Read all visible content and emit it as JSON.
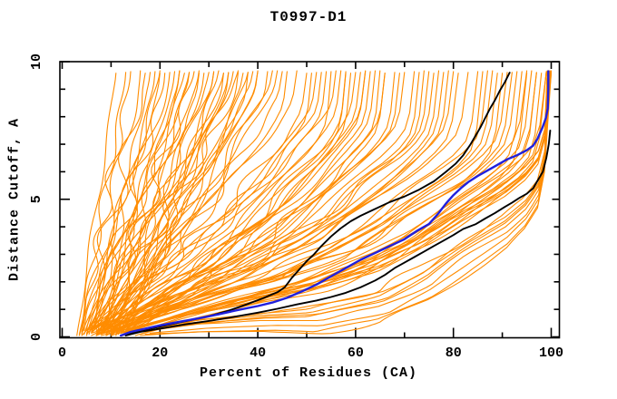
{
  "window": {
    "background": "#ffffff"
  },
  "chart_data": {
    "type": "line",
    "title": "T0997-D1",
    "xlabel": "Percent of Residues (CA)",
    "ylabel": "Distance Cutoff, A",
    "xlim": [
      0,
      100
    ],
    "ylim": [
      0,
      10
    ],
    "x_major_ticks": [
      0,
      20,
      40,
      60,
      80,
      100
    ],
    "x_minor_ticks": [
      10,
      30,
      50,
      70,
      90
    ],
    "y_major_ticks": [
      0,
      5,
      10
    ],
    "y_minor_ticks": [
      1,
      2,
      3,
      4,
      6,
      7,
      8,
      9
    ],
    "grid": false,
    "legend": "none",
    "frame": "box-with-inward-mirrored-ticks",
    "colors": {
      "ensemble": "#ff8c00",
      "highlight": "#2020dd",
      "reference": "#000000",
      "axis": "#000000",
      "background": "#ffffff"
    },
    "curve_y_start": 0.05,
    "curve_y_end": 9.65,
    "shape_template": [
      [
        0,
        0
      ],
      [
        0.14,
        0.04
      ],
      [
        0.31,
        0.08
      ],
      [
        0.43,
        0.1
      ],
      [
        0.59,
        0.17
      ],
      [
        0.7,
        0.26
      ],
      [
        0.8,
        0.37
      ],
      [
        0.89,
        0.46
      ],
      [
        0.94,
        0.53
      ],
      [
        0.98,
        0.62
      ],
      [
        1.0,
        1.0
      ]
    ],
    "series": [
      {
        "name": "server-models-ensemble",
        "color": "#ff8c00",
        "style": "param",
        "width": 1.1,
        "curves": [
          [
            3,
            11,
            0.03
          ],
          [
            3.5,
            13,
            0.05
          ],
          [
            4,
            14,
            0.02
          ],
          [
            4,
            16,
            0.08
          ],
          [
            4.5,
            17,
            0.04
          ],
          [
            5,
            18,
            0.06
          ],
          [
            5,
            19,
            0.1
          ],
          [
            5.5,
            20,
            0.03
          ],
          [
            6,
            21,
            0.07
          ],
          [
            6,
            22,
            0.05
          ],
          [
            6.5,
            23,
            0.09
          ],
          [
            7,
            24,
            0.12
          ],
          [
            7,
            25,
            0.04
          ],
          [
            7.5,
            26,
            0.08
          ],
          [
            8,
            27,
            0.02
          ],
          [
            8,
            28,
            0.06
          ],
          [
            8.5,
            29,
            0.1
          ],
          [
            9,
            30,
            0.05
          ],
          [
            9,
            31,
            0.13
          ],
          [
            9.5,
            32,
            0.07
          ],
          [
            10,
            33,
            0.04
          ],
          [
            10,
            34,
            0.09
          ],
          [
            10.5,
            35,
            0.06
          ],
          [
            11,
            36,
            0.02
          ],
          [
            11,
            37,
            0.11
          ],
          [
            11.5,
            38,
            0.05
          ],
          [
            12,
            39,
            0.08
          ],
          [
            12,
            40,
            0.14
          ],
          [
            5,
            33,
            0.15
          ],
          [
            6,
            36,
            0.17
          ],
          [
            7,
            40,
            0.15
          ],
          [
            4,
            24,
            0.12
          ],
          [
            5,
            28,
            0.16
          ],
          [
            6,
            31,
            0.1
          ],
          [
            8,
            42,
            0.18
          ],
          [
            9,
            44,
            0.14
          ],
          [
            3.5,
            20,
            0.09
          ],
          [
            4.5,
            26,
            0.06
          ],
          [
            10,
            45,
            0.19
          ],
          [
            11,
            43,
            0.12
          ],
          [
            7.5,
            34,
            0.16
          ],
          [
            8.5,
            38,
            0.2
          ],
          [
            4,
            46,
            0.3
          ],
          [
            5,
            48,
            0.26
          ],
          [
            6,
            50,
            0.34
          ],
          [
            7,
            52,
            0.3
          ],
          [
            8,
            54,
            0.38
          ],
          [
            9,
            56,
            0.3
          ],
          [
            10,
            58,
            0.42
          ],
          [
            11,
            60,
            0.34
          ],
          [
            12,
            62,
            0.38
          ],
          [
            13,
            64,
            0.46
          ],
          [
            5,
            51,
            0.42
          ],
          [
            6,
            53,
            0.34
          ],
          [
            7,
            55,
            0.46
          ],
          [
            8,
            57,
            0.38
          ],
          [
            9,
            59,
            0.5
          ],
          [
            10,
            61,
            0.42
          ],
          [
            11,
            63,
            0.46
          ],
          [
            12,
            65,
            0.52
          ],
          [
            13,
            66,
            0.42
          ],
          [
            14,
            68,
            0.48
          ],
          [
            5,
            58,
            0.52
          ],
          [
            6,
            62,
            0.46
          ],
          [
            7,
            66,
            0.54
          ],
          [
            8,
            70,
            0.48
          ],
          [
            9,
            72,
            0.5
          ],
          [
            10,
            74,
            0.55
          ],
          [
            11,
            76,
            0.5
          ],
          [
            12,
            78,
            0.55
          ],
          [
            13,
            80,
            0.52
          ],
          [
            14,
            79,
            0.57
          ],
          [
            6,
            69,
            0.5
          ],
          [
            7,
            73,
            0.55
          ],
          [
            8,
            75,
            0.52
          ],
          [
            9,
            77,
            0.57
          ],
          [
            5,
            81,
            0.6
          ],
          [
            6,
            83,
            0.57
          ],
          [
            7,
            85,
            0.62
          ],
          [
            8,
            87,
            0.6
          ],
          [
            9,
            89,
            0.65
          ],
          [
            10,
            91,
            0.62
          ],
          [
            11,
            93,
            0.67
          ],
          [
            12,
            95,
            0.64
          ],
          [
            13,
            97,
            0.7
          ],
          [
            14,
            99,
            0.66
          ],
          [
            6,
            86,
            0.72
          ],
          [
            7,
            88,
            0.66
          ],
          [
            8,
            90,
            0.74
          ],
          [
            9,
            92,
            0.68
          ],
          [
            10,
            94,
            0.76
          ],
          [
            11,
            96,
            0.7
          ],
          [
            12,
            98,
            0.78
          ],
          [
            13,
            100,
            0.72
          ],
          [
            14,
            100,
            0.8
          ],
          [
            15,
            100,
            0.75
          ],
          [
            8,
            95,
            0.82
          ],
          [
            9,
            97,
            0.78
          ],
          [
            10,
            99,
            0.84
          ],
          [
            11,
            100,
            0.8
          ],
          [
            12,
            100,
            0.86
          ],
          [
            13,
            100,
            0.83
          ],
          [
            15,
            99,
            0.76
          ],
          [
            16,
            100,
            0.82
          ],
          [
            12,
            100,
            1.02
          ],
          [
            13,
            100,
            1.08
          ],
          [
            14,
            100,
            1.14
          ],
          [
            15,
            100,
            1.2
          ],
          [
            16,
            100,
            1.26
          ],
          [
            17,
            100,
            1.3
          ],
          [
            18,
            100,
            1.22
          ],
          [
            16,
            100,
            1.1
          ],
          [
            14,
            100,
            1.05
          ]
        ]
      },
      {
        "name": "reference-model-upper-black",
        "color": "#000000",
        "style": "points",
        "width": 1.9,
        "points": [
          [
            12,
            0.05
          ],
          [
            15,
            0.2
          ],
          [
            18,
            0.3
          ],
          [
            22,
            0.45
          ],
          [
            26,
            0.6
          ],
          [
            30,
            0.75
          ],
          [
            34,
            0.95
          ],
          [
            38,
            1.2
          ],
          [
            41,
            1.4
          ],
          [
            44,
            1.62
          ],
          [
            45.5,
            1.8
          ],
          [
            47,
            2.15
          ],
          [
            48.5,
            2.45
          ],
          [
            50,
            2.75
          ],
          [
            51.5,
            3.0
          ],
          [
            53,
            3.3
          ],
          [
            55,
            3.65
          ],
          [
            57,
            3.95
          ],
          [
            59,
            4.2
          ],
          [
            61,
            4.4
          ],
          [
            64,
            4.65
          ],
          [
            67,
            4.9
          ],
          [
            70,
            5.1
          ],
          [
            73,
            5.35
          ],
          [
            76,
            5.65
          ],
          [
            78.5,
            6.0
          ],
          [
            80.5,
            6.3
          ],
          [
            82,
            6.6
          ],
          [
            83.5,
            7.0
          ],
          [
            84.5,
            7.3
          ],
          [
            85.5,
            7.6
          ],
          [
            86.5,
            7.95
          ],
          [
            87.5,
            8.3
          ],
          [
            88.5,
            8.6
          ],
          [
            89.5,
            8.95
          ],
          [
            90.5,
            9.25
          ],
          [
            91.5,
            9.6
          ]
        ]
      },
      {
        "name": "reference-model-lower-black",
        "color": "#000000",
        "style": "points",
        "width": 1.9,
        "points": [
          [
            13,
            0.05
          ],
          [
            16,
            0.18
          ],
          [
            20,
            0.3
          ],
          [
            25,
            0.45
          ],
          [
            30,
            0.58
          ],
          [
            35,
            0.72
          ],
          [
            40,
            0.88
          ],
          [
            44,
            1.02
          ],
          [
            48,
            1.18
          ],
          [
            52,
            1.32
          ],
          [
            55,
            1.45
          ],
          [
            58,
            1.6
          ],
          [
            61,
            1.8
          ],
          [
            64,
            2.05
          ],
          [
            66,
            2.25
          ],
          [
            68,
            2.5
          ],
          [
            70,
            2.7
          ],
          [
            72,
            2.9
          ],
          [
            74,
            3.1
          ],
          [
            76,
            3.3
          ],
          [
            78,
            3.5
          ],
          [
            80,
            3.7
          ],
          [
            82,
            3.92
          ],
          [
            84.6,
            4.1
          ],
          [
            86.5,
            4.3
          ],
          [
            88.5,
            4.5
          ],
          [
            90.5,
            4.72
          ],
          [
            92,
            4.88
          ],
          [
            93.5,
            5.05
          ],
          [
            95,
            5.2
          ],
          [
            96.3,
            5.4
          ],
          [
            97.3,
            5.7
          ],
          [
            98.3,
            6.0
          ],
          [
            99,
            6.5
          ],
          [
            99.5,
            7.0
          ],
          [
            99.8,
            7.5
          ]
        ]
      },
      {
        "name": "highlighted-model-blue",
        "color": "#2020dd",
        "style": "points",
        "width": 2.4,
        "points": [
          [
            12,
            0.05
          ],
          [
            14,
            0.18
          ],
          [
            17,
            0.3
          ],
          [
            20,
            0.42
          ],
          [
            24,
            0.55
          ],
          [
            28,
            0.68
          ],
          [
            32,
            0.82
          ],
          [
            36,
            0.98
          ],
          [
            40,
            1.12
          ],
          [
            43,
            1.25
          ],
          [
            46,
            1.42
          ],
          [
            49,
            1.65
          ],
          [
            52,
            1.9
          ],
          [
            55,
            2.2
          ],
          [
            58,
            2.5
          ],
          [
            61,
            2.8
          ],
          [
            64,
            3.05
          ],
          [
            67,
            3.3
          ],
          [
            70,
            3.55
          ],
          [
            72.5,
            3.85
          ],
          [
            75,
            4.1
          ],
          [
            77,
            4.5
          ],
          [
            78.5,
            4.85
          ],
          [
            80,
            5.15
          ],
          [
            81.5,
            5.4
          ],
          [
            83,
            5.62
          ],
          [
            85,
            5.85
          ],
          [
            87,
            6.05
          ],
          [
            89,
            6.25
          ],
          [
            91,
            6.45
          ],
          [
            93,
            6.6
          ],
          [
            95,
            6.78
          ],
          [
            96.3,
            6.95
          ],
          [
            97.2,
            7.2
          ],
          [
            98.2,
            7.6
          ],
          [
            98.9,
            7.95
          ],
          [
            99.3,
            8.3
          ],
          [
            99.4,
            9.0
          ],
          [
            99.4,
            9.65
          ]
        ]
      }
    ]
  }
}
